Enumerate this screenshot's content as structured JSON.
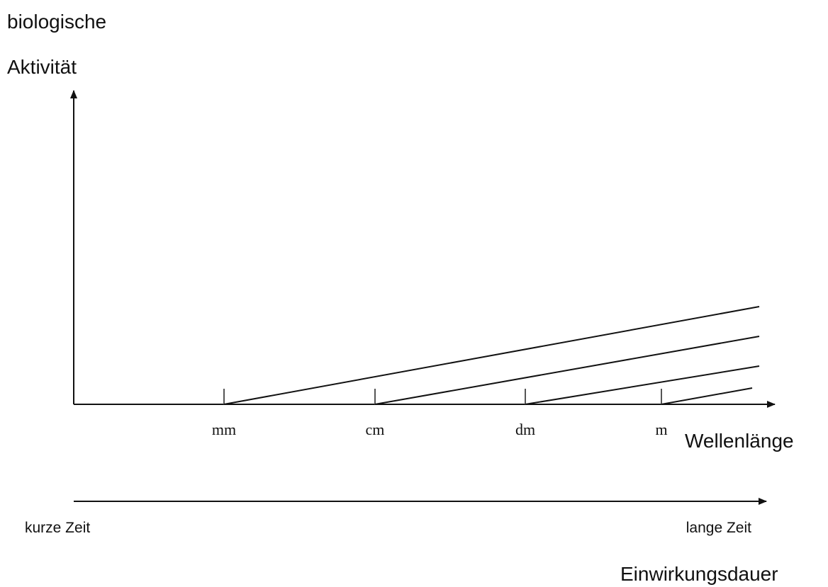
{
  "chart_data": {
    "type": "line",
    "title": "",
    "ylabel_lines": [
      "biologische",
      "Aktivität"
    ],
    "xlabel": "Wellenlänge",
    "categories": [
      "mm",
      "cm",
      "dm",
      "m"
    ],
    "series_start_categories": [
      "mm",
      "cm",
      "dm",
      "m"
    ],
    "y_numeric_scale": "none",
    "time_axis": {
      "label": "Einwirkungsdauer",
      "start_label": "kurze Zeit",
      "end_label": "lange Zeit"
    },
    "grid": false,
    "legend": "none"
  }
}
